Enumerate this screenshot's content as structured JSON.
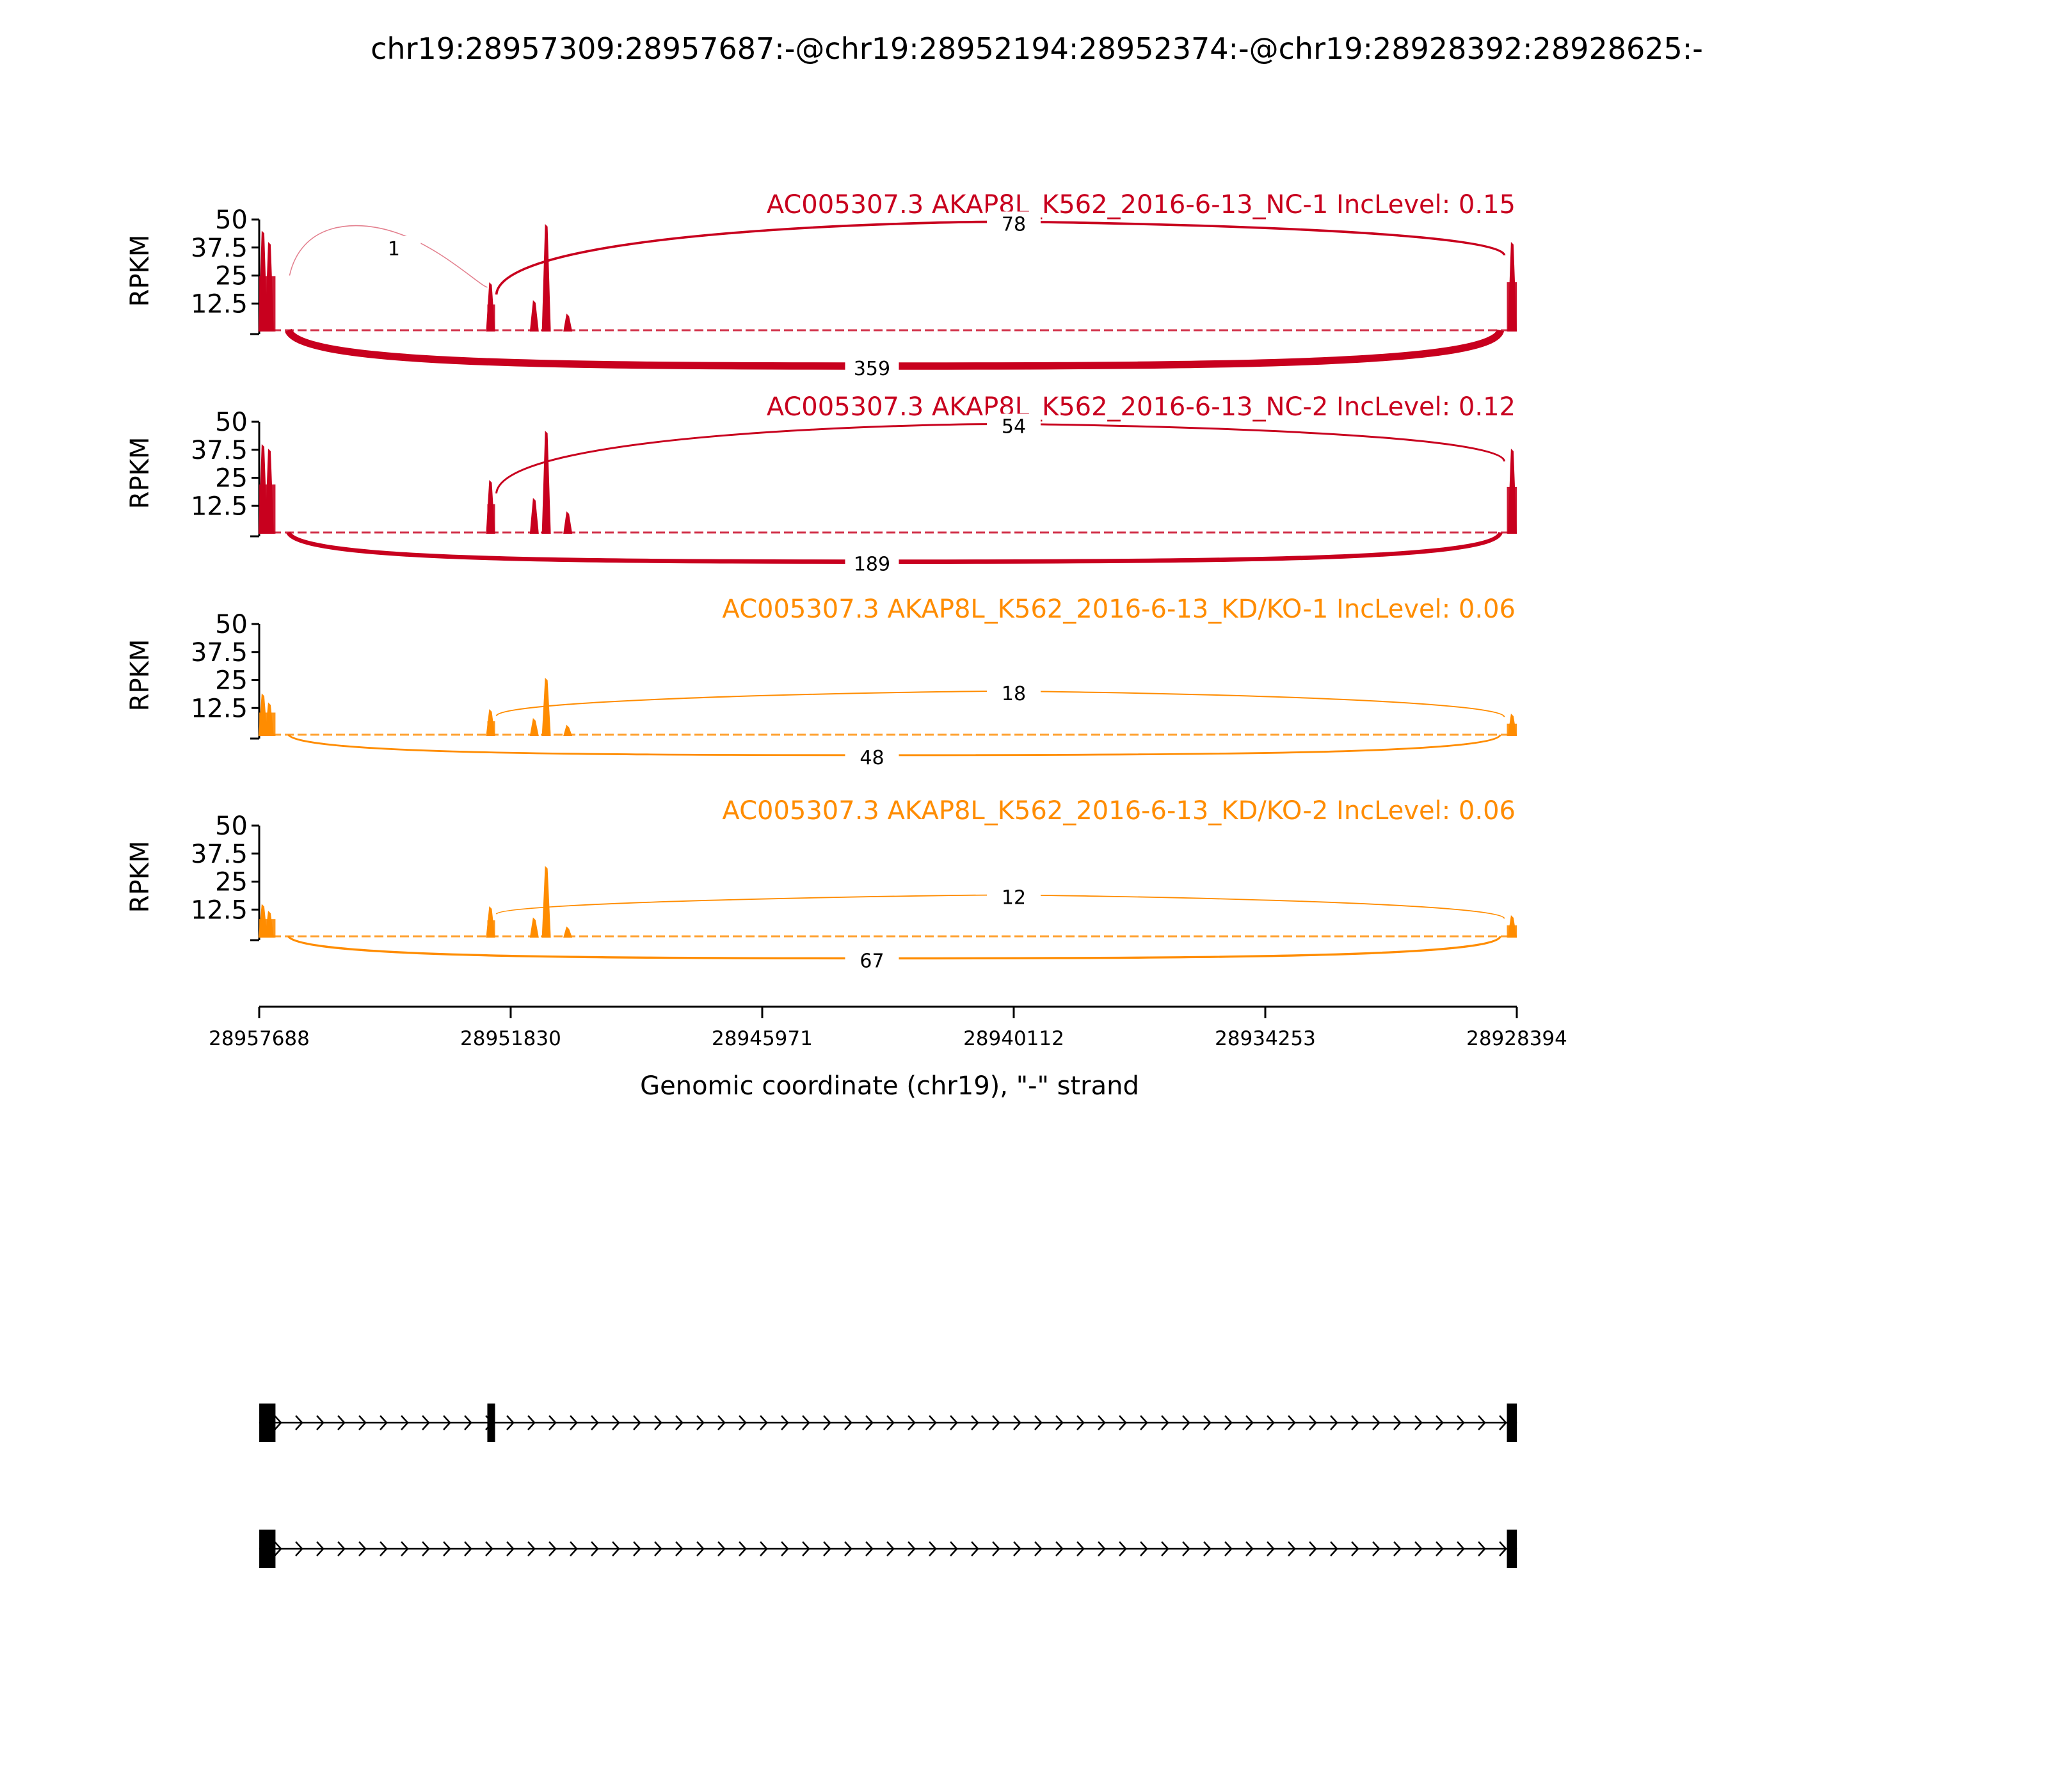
{
  "title": "chr19:28957309:28957687:-@chr19:28952194:28952374:-@chr19:28928392:28928625:-",
  "colors": {
    "nc": "#c8001e",
    "kd": "#ff8c00",
    "axis": "#000000",
    "gene": "#000000",
    "background": "#ffffff"
  },
  "chart_data": {
    "type": "sashimi",
    "title": "chr19:28957309:28957687:-@chr19:28952194:28952374:-@chr19:28928392:28928625:-",
    "xlabel": "Genomic coordinate (chr19), \"-\" strand",
    "xlim": [
      28957688,
      28928394
    ],
    "x_ticks": [
      "28957688",
      "28951830",
      "28945971",
      "28940112",
      "28934253",
      "28928394"
    ],
    "x_tick_values": [
      28957688,
      28951830,
      28945971,
      28940112,
      28934253,
      28928394
    ],
    "exons": [
      {
        "start": 28957687,
        "end": 28957309
      },
      {
        "start": 28952374,
        "end": 28952194
      },
      {
        "start": 28928625,
        "end": 28928392
      }
    ],
    "panels": [
      {
        "label": "AC005307.3 AKAP8L_K562_2016-6-13_NC-1 IncLevel: 0.15",
        "group": "nc",
        "ylabel": "RPKM",
        "ylim": [
          0,
          50
        ],
        "y_ticks": [
          "50",
          "37.5",
          "25",
          "12.5"
        ],
        "y_tick_values": [
          50,
          37.5,
          25,
          12.5
        ],
        "coverage_peaks": [
          {
            "x": 28957600,
            "rpkm": 45
          },
          {
            "x": 28957450,
            "rpkm": 40
          },
          {
            "x": 28952300,
            "rpkm": 22
          },
          {
            "x": 28951280,
            "rpkm": 14
          },
          {
            "x": 28951000,
            "rpkm": 48
          },
          {
            "x": 28950500,
            "rpkm": 8
          },
          {
            "x": 28928500,
            "rpkm": 40
          }
        ],
        "junctions": [
          {
            "from": 28957309,
            "to": 28952374,
            "count": "1",
            "side": "above"
          },
          {
            "from": 28952194,
            "to": 28928625,
            "count": "78",
            "side": "above"
          },
          {
            "from": 28957309,
            "to": 28928625,
            "count": "359",
            "side": "below"
          }
        ]
      },
      {
        "label": "AC005307.3 AKAP8L_K562_2016-6-13_NC-2 IncLevel: 0.12",
        "group": "nc",
        "ylabel": "RPKM",
        "ylim": [
          0,
          50
        ],
        "y_ticks": [
          "50",
          "37.5",
          "25",
          "12.5"
        ],
        "y_tick_values": [
          50,
          37.5,
          25,
          12.5
        ],
        "coverage_peaks": [
          {
            "x": 28957600,
            "rpkm": 40
          },
          {
            "x": 28957450,
            "rpkm": 38
          },
          {
            "x": 28952300,
            "rpkm": 24
          },
          {
            "x": 28951280,
            "rpkm": 16
          },
          {
            "x": 28951000,
            "rpkm": 46
          },
          {
            "x": 28950500,
            "rpkm": 10
          },
          {
            "x": 28928500,
            "rpkm": 38
          }
        ],
        "junctions": [
          {
            "from": 28952194,
            "to": 28928625,
            "count": "54",
            "side": "above"
          },
          {
            "from": 28957309,
            "to": 28928625,
            "count": "189",
            "side": "below"
          }
        ]
      },
      {
        "label": "AC005307.3 AKAP8L_K562_2016-6-13_KD/KO-1 IncLevel: 0.06",
        "group": "kd",
        "ylabel": "RPKM",
        "ylim": [
          0,
          50
        ],
        "y_ticks": [
          "50",
          "37.5",
          "25",
          "12.5"
        ],
        "y_tick_values": [
          50,
          37.5,
          25,
          12.5
        ],
        "coverage_peaks": [
          {
            "x": 28957600,
            "rpkm": 19
          },
          {
            "x": 28957450,
            "rpkm": 15
          },
          {
            "x": 28952300,
            "rpkm": 12
          },
          {
            "x": 28951280,
            "rpkm": 8
          },
          {
            "x": 28951000,
            "rpkm": 26
          },
          {
            "x": 28950500,
            "rpkm": 5
          },
          {
            "x": 28928500,
            "rpkm": 10
          }
        ],
        "junctions": [
          {
            "from": 28952194,
            "to": 28928625,
            "count": "18",
            "side": "above"
          },
          {
            "from": 28957309,
            "to": 28928625,
            "count": "48",
            "side": "below"
          }
        ]
      },
      {
        "label": "AC005307.3 AKAP8L_K562_2016-6-13_KD/KO-2 IncLevel: 0.06",
        "group": "kd",
        "ylabel": "RPKM",
        "ylim": [
          0,
          50
        ],
        "y_ticks": [
          "50",
          "37.5",
          "25",
          "12.5"
        ],
        "y_tick_values": [
          50,
          37.5,
          25,
          12.5
        ],
        "coverage_peaks": [
          {
            "x": 28957600,
            "rpkm": 15
          },
          {
            "x": 28957450,
            "rpkm": 12
          },
          {
            "x": 28952300,
            "rpkm": 14
          },
          {
            "x": 28951280,
            "rpkm": 9
          },
          {
            "x": 28951000,
            "rpkm": 32
          },
          {
            "x": 28950500,
            "rpkm": 5
          },
          {
            "x": 28928500,
            "rpkm": 10
          }
        ],
        "junctions": [
          {
            "from": 28952194,
            "to": 28928625,
            "count": "12",
            "side": "above"
          },
          {
            "from": 28957309,
            "to": 28928625,
            "count": "67",
            "side": "below"
          }
        ]
      }
    ],
    "isoforms": [
      {
        "exons": [
          0,
          1,
          2
        ]
      },
      {
        "exons": [
          0,
          2
        ]
      }
    ]
  }
}
